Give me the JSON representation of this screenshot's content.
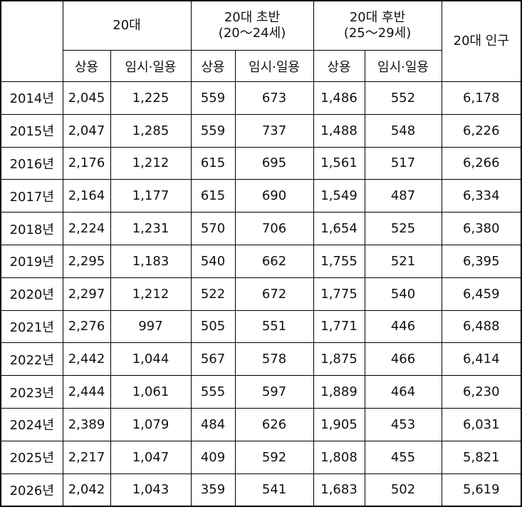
{
  "table": {
    "header": {
      "group_20s": "20대",
      "group_early": [
        "20대 초반",
        "(20～24세)"
      ],
      "group_late": [
        "20대 후반",
        "(25～29세)"
      ],
      "population": "20대 인구",
      "sub": [
        "상용",
        "임시·일용",
        "상용",
        "임시·일용",
        "상용",
        "임시·일용"
      ]
    },
    "rows": [
      [
        "2014년",
        "2,045",
        "1,225",
        "559",
        "673",
        "1,486",
        "552",
        "6,178"
      ],
      [
        "2015년",
        "2,047",
        "1,285",
        "559",
        "737",
        "1,488",
        "548",
        "6,226"
      ],
      [
        "2016년",
        "2,176",
        "1,212",
        "615",
        "695",
        "1,561",
        "517",
        "6,266"
      ],
      [
        "2017년",
        "2,164",
        "1,177",
        "615",
        "690",
        "1,549",
        "487",
        "6,334"
      ],
      [
        "2018년",
        "2,224",
        "1,231",
        "570",
        "706",
        "1,654",
        "525",
        "6,380"
      ],
      [
        "2019년",
        "2,295",
        "1,183",
        "540",
        "662",
        "1,755",
        "521",
        "6,395"
      ],
      [
        "2020년",
        "2,297",
        "1,212",
        "522",
        "672",
        "1,775",
        "540",
        "6,459"
      ],
      [
        "2021년",
        "2,276",
        "997",
        "505",
        "551",
        "1,771",
        "446",
        "6,488"
      ],
      [
        "2022년",
        "2,442",
        "1,044",
        "567",
        "578",
        "1,875",
        "466",
        "6,414"
      ],
      [
        "2023년",
        "2,444",
        "1,061",
        "555",
        "597",
        "1,889",
        "464",
        "6,230"
      ],
      [
        "2024년",
        "2,389",
        "1,079",
        "484",
        "626",
        "1,905",
        "453",
        "6,031"
      ],
      [
        "2025년",
        "2,217",
        "1,047",
        "409",
        "592",
        "1,808",
        "455",
        "5,821"
      ],
      [
        "2026년",
        "2,042",
        "1,043",
        "359",
        "541",
        "1,683",
        "502",
        "5,619"
      ]
    ]
  }
}
